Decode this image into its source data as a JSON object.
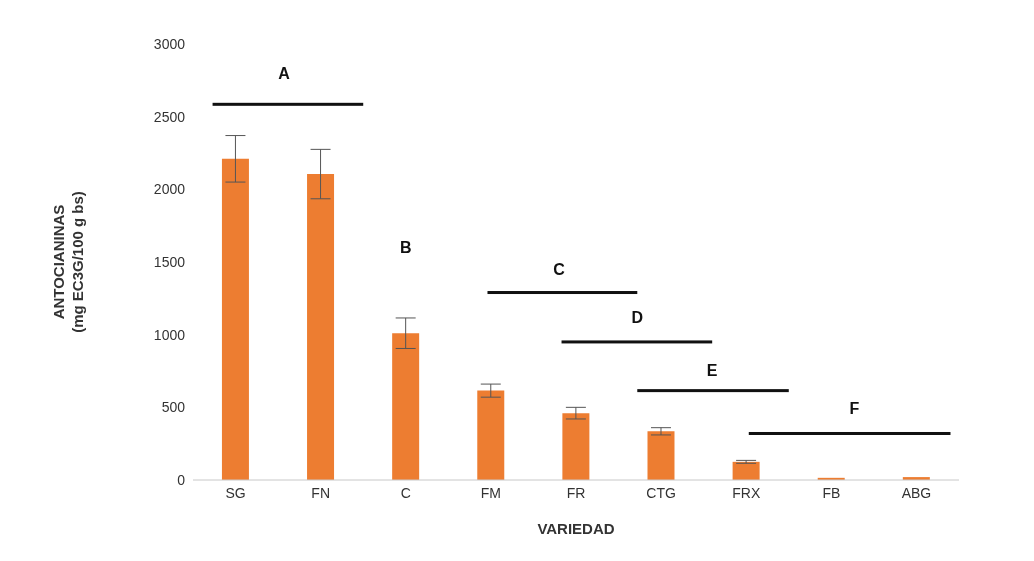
{
  "chart_data": {
    "type": "bar",
    "xlabel": "VARIEDAD",
    "ylabel": "ANTOCIANINAS\n(mg EC3G/100 g bs)",
    "categories": [
      "SG",
      "FN",
      "C",
      "FM",
      "FR",
      "CTG",
      "FRX",
      "FB",
      "ABG"
    ],
    "values": [
      2210,
      2105,
      1010,
      615,
      460,
      335,
      125,
      15,
      20
    ],
    "errors": [
      160,
      170,
      105,
      45,
      40,
      25,
      10,
      null,
      null
    ],
    "color": "#ed7d31",
    "ylim": [
      0,
      3000
    ],
    "yticks": [
      0,
      500,
      1000,
      1500,
      2000,
      2500,
      3000
    ],
    "annotations": [
      "A",
      "B",
      "C",
      "D",
      "E",
      "F"
    ]
  }
}
